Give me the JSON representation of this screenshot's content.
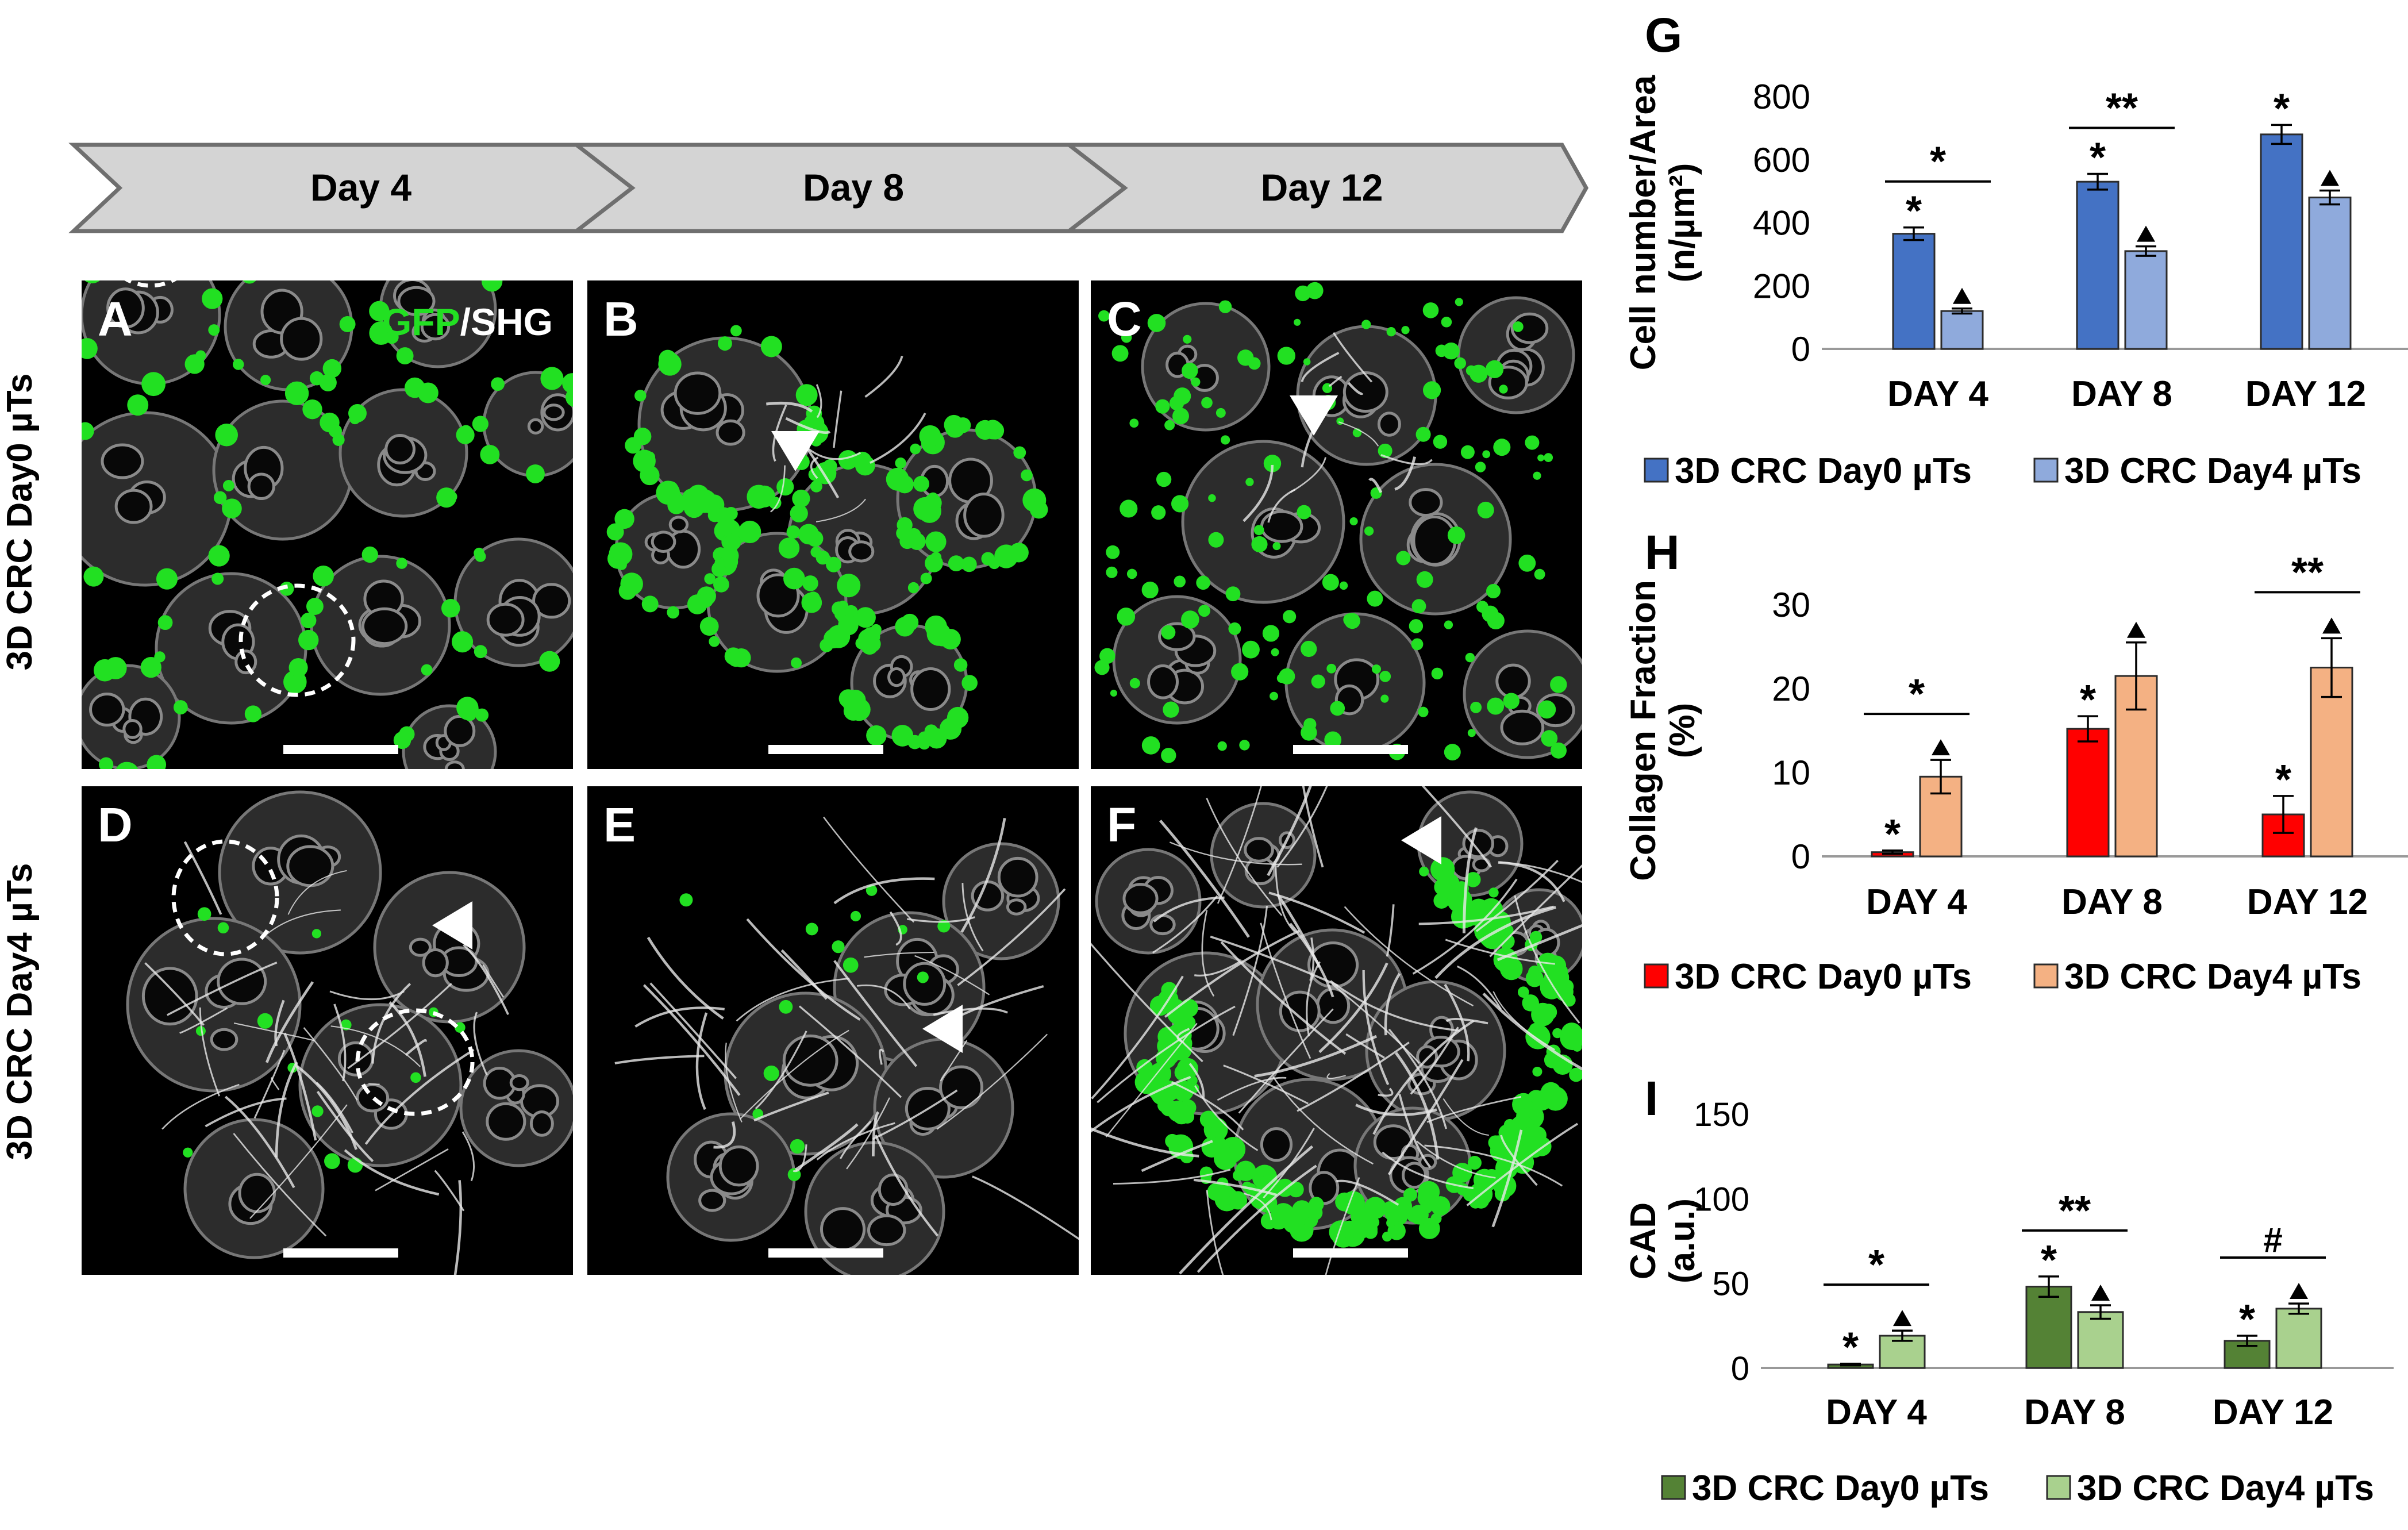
{
  "timeline": {
    "steps": [
      "Day 4",
      "Day 8",
      "Day 12"
    ],
    "fill": "#d4d4d4",
    "stroke": "#6f6f6f"
  },
  "rows": [
    "3D CRC Day0 µTs",
    "3D CRC Day4 µTs"
  ],
  "legend_channels": {
    "gfp": "GFP",
    "sep": "/",
    "shg": "SHG"
  },
  "panels": [
    {
      "letter": "A",
      "row": 0,
      "col": 0,
      "circles": 2,
      "arrows": 0,
      "green": "sparse",
      "fibers": "none"
    },
    {
      "letter": "B",
      "row": 0,
      "col": 1,
      "circles": 0,
      "arrows": 1,
      "green": "rings",
      "fibers": "few"
    },
    {
      "letter": "C",
      "row": 0,
      "col": 2,
      "circles": 0,
      "arrows": 1,
      "green": "scattered",
      "fibers": "few"
    },
    {
      "letter": "D",
      "row": 1,
      "col": 0,
      "circles": 2,
      "arrows": 1,
      "green": "few",
      "fibers": "some"
    },
    {
      "letter": "E",
      "row": 1,
      "col": 1,
      "circles": 0,
      "arrows": 1,
      "green": "few",
      "fibers": "some"
    },
    {
      "letter": "F",
      "row": 1,
      "col": 2,
      "circles": 0,
      "arrows": 1,
      "green": "mass",
      "fibers": "dense"
    }
  ],
  "colors": {
    "gfp": "#22e022",
    "g_dark": "#4472c4",
    "g_light": "#8faadc",
    "h_dark": "#ff0000",
    "h_light": "#f4b183",
    "i_dark": "#548235",
    "i_light": "#a9d18e"
  },
  "chart_data": [
    {
      "panel": "G",
      "type": "bar",
      "categories": [
        "DAY 4",
        "DAY 8",
        "DAY 12"
      ],
      "ylabel": "Cell number/Area (n/µm²)",
      "ylim": [
        0,
        800
      ],
      "yticks": [
        0,
        200,
        400,
        600,
        800
      ],
      "series": [
        {
          "name": "3D CRC Day0 µTs",
          "values": [
            365,
            530,
            680
          ],
          "errors": [
            20,
            25,
            30
          ],
          "marks": [
            "*",
            "*",
            "*"
          ]
        },
        {
          "name": "3D CRC Day4 µTs",
          "values": [
            120,
            310,
            480
          ],
          "errors": [
            8,
            15,
            22
          ],
          "marks": [
            "▲",
            "▲",
            "▲"
          ]
        }
      ],
      "significance": [
        "*",
        "**",
        ""
      ]
    },
    {
      "panel": "H",
      "type": "bar",
      "categories": [
        "DAY 4",
        "DAY 8",
        "DAY 12"
      ],
      "ylabel": "Collagen Fraction (%)",
      "ylim": [
        0,
        30
      ],
      "yticks": [
        0,
        10,
        20,
        30
      ],
      "series": [
        {
          "name": "3D CRC Day0 µTs",
          "values": [
            0.5,
            15.2,
            5.0
          ],
          "errors": [
            0.2,
            1.5,
            2.2
          ],
          "marks": [
            "*",
            "*",
            "*"
          ]
        },
        {
          "name": "3D CRC Day4 µTs",
          "values": [
            9.5,
            21.5,
            22.5
          ],
          "errors": [
            2.0,
            4.0,
            3.5
          ],
          "marks": [
            "▲",
            "▲",
            "▲"
          ]
        }
      ],
      "significance": [
        "*",
        "",
        "**"
      ]
    },
    {
      "panel": "I",
      "type": "bar",
      "categories": [
        "DAY 4",
        "DAY 8",
        "DAY 12"
      ],
      "ylabel": "CAD (a.u.)",
      "ylim": [
        0,
        150
      ],
      "yticks": [
        0,
        50,
        100,
        150
      ],
      "series": [
        {
          "name": "3D CRC Day0 µTs",
          "values": [
            2,
            48,
            16
          ],
          "errors": [
            0.5,
            6,
            3
          ],
          "marks": [
            "*",
            "*",
            "*"
          ]
        },
        {
          "name": "3D CRC Day4 µTs",
          "values": [
            19,
            33,
            35
          ],
          "errors": [
            3,
            4,
            3
          ],
          "marks": [
            "▲",
            "▲",
            "▲"
          ]
        }
      ],
      "significance": [
        "*",
        "**",
        "#"
      ]
    }
  ]
}
